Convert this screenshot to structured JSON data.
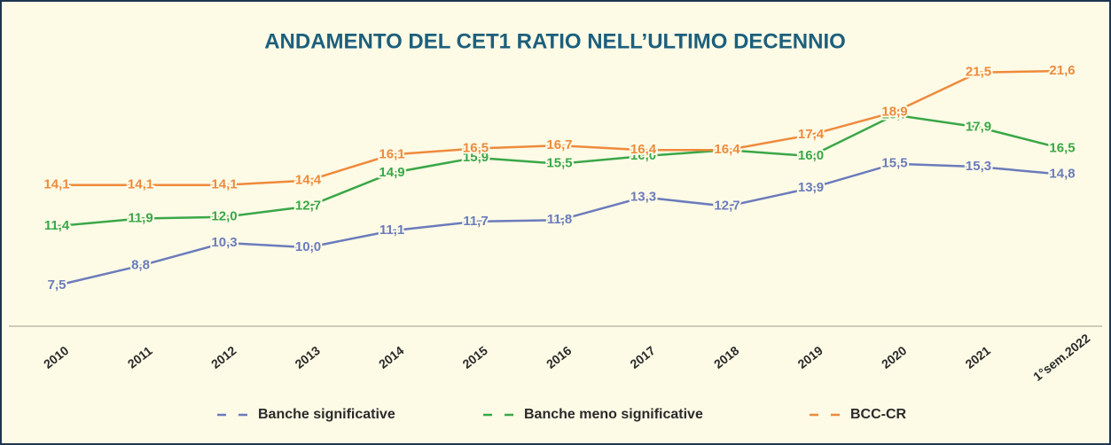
{
  "chart_data": {
    "type": "line",
    "title": "ANDAMENTO DEL CET1 RATIO NELL’ULTIMO DECENNIO",
    "categories": [
      "2010",
      "2011",
      "2012",
      "2013",
      "2014",
      "2015",
      "2016",
      "2017",
      "2018",
      "2019",
      "2020",
      "2021",
      "1°sem.2022"
    ],
    "series": [
      {
        "name": "Banche significative",
        "color": "#6b7bbb",
        "values": [
          7.5,
          8.8,
          10.3,
          10.0,
          11.1,
          11.7,
          11.8,
          13.3,
          12.7,
          13.9,
          15.5,
          15.3,
          14.8
        ],
        "value_labels": [
          "7,5",
          "8,8",
          "10,3",
          "10,0",
          "11,1",
          "11,7",
          "11,8",
          "13,3",
          "12,7",
          "13,9",
          "15,5",
          "15,3",
          "14,8"
        ]
      },
      {
        "name": "Banche meno significative",
        "color": "#3aa748",
        "values": [
          11.4,
          11.9,
          12.0,
          12.7,
          14.9,
          15.9,
          15.5,
          16.0,
          16.4,
          16.0,
          18.7,
          17.9,
          16.5
        ],
        "value_labels": [
          "11,4",
          "11,9",
          "12,0",
          "12,7",
          "14,9",
          "15,9",
          "15,5",
          "16,0",
          "16,4",
          "16,0",
          "18,7",
          "17,9",
          "16,5"
        ]
      },
      {
        "name": "BCC-CR",
        "color": "#ee8a3c",
        "values": [
          14.1,
          14.1,
          14.1,
          14.4,
          16.1,
          16.5,
          16.7,
          16.4,
          16.4,
          17.4,
          18.9,
          21.5,
          21.6
        ],
        "value_labels": [
          "14,1",
          "14,1",
          "14,1",
          "14,4",
          "16,1",
          "16,5",
          "16,7",
          "16,4",
          "16,4",
          "17,4",
          "18,9",
          "21,5",
          "21,6"
        ]
      }
    ]
  }
}
